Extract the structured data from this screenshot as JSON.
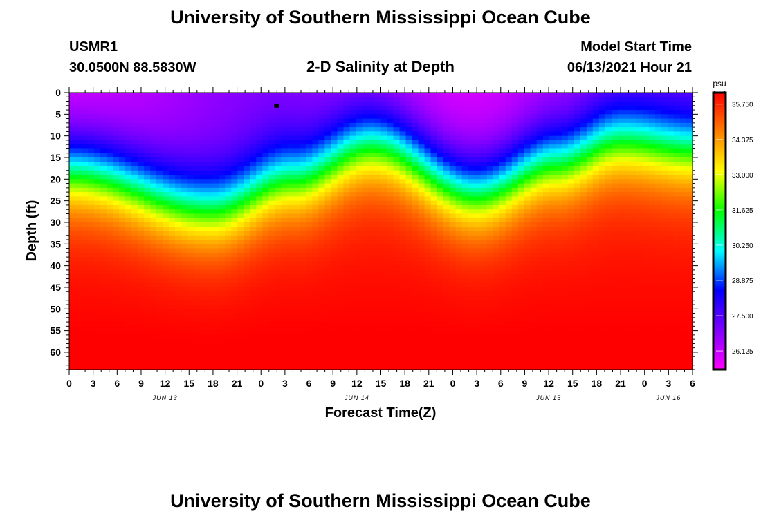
{
  "header": {
    "title": "University of Southern Mississippi Ocean Cube",
    "station_id": "USMR1",
    "location": "30.0500N  88.5830W",
    "subtitle": "2-D Salinity at Depth",
    "model_label": "Model Start Time",
    "model_time": "06/13/2021 Hour 21"
  },
  "footer": {
    "title": "University of Southern Mississippi Ocean Cube"
  },
  "chart_data": {
    "type": "heatmap",
    "title": "2-D Salinity at Depth",
    "xlabel": "Forecast Time(Z)",
    "ylabel": "Depth (ft)",
    "x_ticks": [
      "0",
      "3",
      "6",
      "9",
      "12",
      "15",
      "18",
      "21",
      "0",
      "3",
      "6",
      "9",
      "12",
      "15",
      "18",
      "21",
      "0",
      "3",
      "6",
      "9",
      "12",
      "15",
      "18",
      "21",
      "0",
      "3",
      "6"
    ],
    "x_range_hours": [
      0,
      78
    ],
    "date_labels": [
      {
        "label": "JUN 13",
        "hour": 12
      },
      {
        "label": "JUN 14",
        "hour": 36
      },
      {
        "label": "JUN 15",
        "hour": 60
      },
      {
        "label": "JUN 16",
        "hour": 75
      }
    ],
    "y_ticks": [
      "0",
      "5",
      "10",
      "15",
      "20",
      "25",
      "30",
      "35",
      "40",
      "45",
      "50",
      "55",
      "60"
    ],
    "y_range_ft": [
      0,
      64
    ],
    "colorbar": {
      "unit": "psu",
      "range": [
        25.4,
        36.2
      ],
      "tick_labels": [
        "35.750",
        "34.375",
        "33.000",
        "31.625",
        "30.250",
        "28.875",
        "27.500",
        "26.125"
      ],
      "tick_values": [
        35.75,
        34.375,
        33.0,
        31.625,
        30.25,
        28.875,
        27.5,
        26.125
      ],
      "colors": [
        "#ff00ff",
        "#8000ff",
        "#0000ff",
        "#00ffff",
        "#00ff00",
        "#ffff00",
        "#ff8000",
        "#ff0000"
      ]
    },
    "halocline_depth_ft": [
      {
        "hour": 0,
        "depth": 18
      },
      {
        "hour": 18,
        "depth": 27
      },
      {
        "hour": 28,
        "depth": 20
      },
      {
        "hour": 38,
        "depth": 12
      },
      {
        "hour": 51,
        "depth": 23
      },
      {
        "hour": 61,
        "depth": 16
      },
      {
        "hour": 69,
        "depth": 11
      },
      {
        "hour": 78,
        "depth": 13
      }
    ],
    "marker": {
      "hour": 26,
      "depth_ft": 3
    }
  }
}
